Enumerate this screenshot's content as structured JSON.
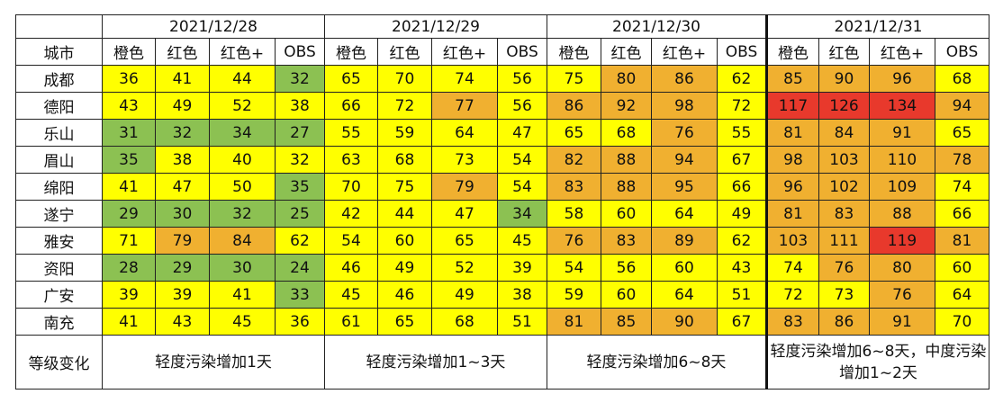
{
  "colors": {
    "yellow": "#ffff00",
    "orange": "#f0b030",
    "red": "#e8392c",
    "green": "#8cc152",
    "white": "#ffffff"
  },
  "header": {
    "city_label": "城市",
    "dates": [
      "2021/12/28",
      "2021/12/29",
      "2021/12/30",
      "2021/12/31"
    ],
    "sub_columns": [
      "橙色",
      "红色",
      "红色+",
      "OBS"
    ]
  },
  "rows": [
    {
      "city": "成都",
      "values": [
        [
          "36",
          "y"
        ],
        [
          "41",
          "y"
        ],
        [
          "44",
          "y"
        ],
        [
          "32",
          "g"
        ],
        [
          "65",
          "y"
        ],
        [
          "70",
          "y"
        ],
        [
          "74",
          "y"
        ],
        [
          "56",
          "y"
        ],
        [
          "75",
          "y"
        ],
        [
          "80",
          "o"
        ],
        [
          "86",
          "o"
        ],
        [
          "62",
          "y"
        ],
        [
          "85",
          "o"
        ],
        [
          "90",
          "o"
        ],
        [
          "96",
          "o"
        ],
        [
          "68",
          "y"
        ]
      ]
    },
    {
      "city": "德阳",
      "values": [
        [
          "43",
          "y"
        ],
        [
          "49",
          "y"
        ],
        [
          "52",
          "y"
        ],
        [
          "38",
          "y"
        ],
        [
          "66",
          "y"
        ],
        [
          "72",
          "y"
        ],
        [
          "77",
          "o"
        ],
        [
          "56",
          "y"
        ],
        [
          "86",
          "o"
        ],
        [
          "92",
          "o"
        ],
        [
          "98",
          "o"
        ],
        [
          "72",
          "y"
        ],
        [
          "117",
          "r"
        ],
        [
          "126",
          "r"
        ],
        [
          "134",
          "r"
        ],
        [
          "94",
          "o"
        ]
      ]
    },
    {
      "city": "乐山",
      "values": [
        [
          "31",
          "g"
        ],
        [
          "32",
          "g"
        ],
        [
          "34",
          "g"
        ],
        [
          "27",
          "g"
        ],
        [
          "55",
          "y"
        ],
        [
          "59",
          "y"
        ],
        [
          "64",
          "y"
        ],
        [
          "47",
          "y"
        ],
        [
          "65",
          "y"
        ],
        [
          "68",
          "y"
        ],
        [
          "76",
          "o"
        ],
        [
          "55",
          "y"
        ],
        [
          "81",
          "o"
        ],
        [
          "84",
          "o"
        ],
        [
          "91",
          "o"
        ],
        [
          "65",
          "y"
        ]
      ]
    },
    {
      "city": "眉山",
      "values": [
        [
          "35",
          "g"
        ],
        [
          "38",
          "y"
        ],
        [
          "40",
          "y"
        ],
        [
          "32",
          "y"
        ],
        [
          "63",
          "y"
        ],
        [
          "68",
          "y"
        ],
        [
          "73",
          "y"
        ],
        [
          "54",
          "y"
        ],
        [
          "82",
          "o"
        ],
        [
          "88",
          "o"
        ],
        [
          "94",
          "o"
        ],
        [
          "67",
          "y"
        ],
        [
          "98",
          "o"
        ],
        [
          "103",
          "o"
        ],
        [
          "110",
          "o"
        ],
        [
          "78",
          "o"
        ]
      ]
    },
    {
      "city": "绵阳",
      "values": [
        [
          "41",
          "y"
        ],
        [
          "47",
          "y"
        ],
        [
          "50",
          "y"
        ],
        [
          "35",
          "g"
        ],
        [
          "70",
          "y"
        ],
        [
          "75",
          "y"
        ],
        [
          "79",
          "o"
        ],
        [
          "54",
          "y"
        ],
        [
          "83",
          "o"
        ],
        [
          "88",
          "o"
        ],
        [
          "95",
          "o"
        ],
        [
          "66",
          "y"
        ],
        [
          "96",
          "o"
        ],
        [
          "102",
          "o"
        ],
        [
          "109",
          "o"
        ],
        [
          "74",
          "y"
        ]
      ]
    },
    {
      "city": "遂宁",
      "values": [
        [
          "29",
          "g"
        ],
        [
          "30",
          "g"
        ],
        [
          "32",
          "g"
        ],
        [
          "25",
          "g"
        ],
        [
          "42",
          "y"
        ],
        [
          "44",
          "y"
        ],
        [
          "47",
          "y"
        ],
        [
          "34",
          "g"
        ],
        [
          "58",
          "y"
        ],
        [
          "60",
          "y"
        ],
        [
          "64",
          "y"
        ],
        [
          "49",
          "y"
        ],
        [
          "81",
          "o"
        ],
        [
          "83",
          "o"
        ],
        [
          "88",
          "o"
        ],
        [
          "66",
          "y"
        ]
      ]
    },
    {
      "city": "雅安",
      "values": [
        [
          "71",
          "y"
        ],
        [
          "79",
          "o"
        ],
        [
          "84",
          "o"
        ],
        [
          "62",
          "y"
        ],
        [
          "54",
          "y"
        ],
        [
          "60",
          "y"
        ],
        [
          "65",
          "y"
        ],
        [
          "45",
          "y"
        ],
        [
          "76",
          "o"
        ],
        [
          "83",
          "o"
        ],
        [
          "89",
          "o"
        ],
        [
          "62",
          "y"
        ],
        [
          "103",
          "o"
        ],
        [
          "111",
          "o"
        ],
        [
          "119",
          "r"
        ],
        [
          "81",
          "o"
        ]
      ]
    },
    {
      "city": "资阳",
      "values": [
        [
          "28",
          "g"
        ],
        [
          "29",
          "g"
        ],
        [
          "30",
          "g"
        ],
        [
          "24",
          "g"
        ],
        [
          "46",
          "y"
        ],
        [
          "49",
          "y"
        ],
        [
          "52",
          "y"
        ],
        [
          "39",
          "y"
        ],
        [
          "54",
          "y"
        ],
        [
          "56",
          "y"
        ],
        [
          "60",
          "y"
        ],
        [
          "43",
          "y"
        ],
        [
          "74",
          "y"
        ],
        [
          "76",
          "o"
        ],
        [
          "80",
          "o"
        ],
        [
          "60",
          "y"
        ]
      ]
    },
    {
      "city": "广安",
      "values": [
        [
          "39",
          "y"
        ],
        [
          "39",
          "y"
        ],
        [
          "41",
          "y"
        ],
        [
          "33",
          "g"
        ],
        [
          "45",
          "y"
        ],
        [
          "46",
          "y"
        ],
        [
          "49",
          "y"
        ],
        [
          "38",
          "y"
        ],
        [
          "59",
          "y"
        ],
        [
          "60",
          "y"
        ],
        [
          "64",
          "y"
        ],
        [
          "51",
          "y"
        ],
        [
          "72",
          "y"
        ],
        [
          "73",
          "y"
        ],
        [
          "76",
          "o"
        ],
        [
          "64",
          "y"
        ]
      ]
    },
    {
      "city": "南充",
      "values": [
        [
          "41",
          "y"
        ],
        [
          "43",
          "y"
        ],
        [
          "45",
          "y"
        ],
        [
          "36",
          "y"
        ],
        [
          "61",
          "y"
        ],
        [
          "65",
          "y"
        ],
        [
          "68",
          "y"
        ],
        [
          "51",
          "y"
        ],
        [
          "81",
          "o"
        ],
        [
          "85",
          "o"
        ],
        [
          "90",
          "o"
        ],
        [
          "67",
          "y"
        ],
        [
          "83",
          "o"
        ],
        [
          "86",
          "o"
        ],
        [
          "91",
          "o"
        ],
        [
          "70",
          "y"
        ]
      ]
    }
  ],
  "summary": {
    "label": "等级变化",
    "items": [
      "轻度污染增加1天",
      "轻度污染增加1~3天",
      "轻度污染增加6~8天",
      "轻度污染增加6~8天，中度污染增加1~2天"
    ]
  }
}
